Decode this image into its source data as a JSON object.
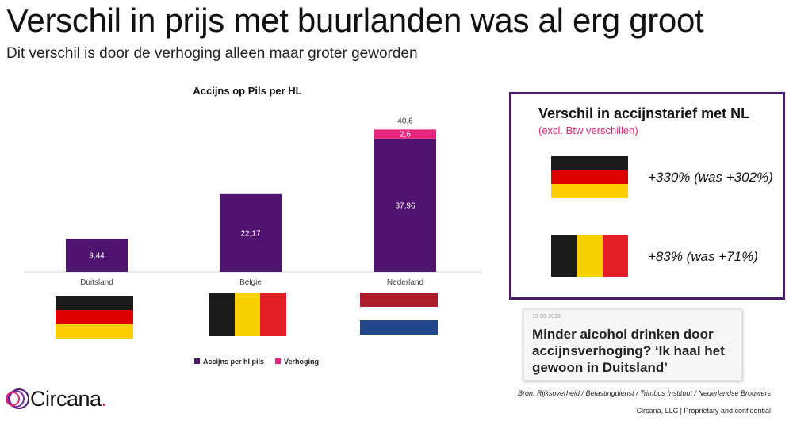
{
  "title": "Verschil in prijs met buurlanden was al erg groot",
  "subtitle": "Dit verschil is door de verhoging alleen maar groter geworden",
  "chart_data": {
    "type": "bar",
    "stacked": true,
    "title": "Accijns op Pils per HL",
    "categories": [
      "Duitsland",
      "Belgie",
      "Nederland"
    ],
    "series": [
      {
        "name": "Accijns per hl pils",
        "color": "#4f1370",
        "values": [
          9.44,
          22.17,
          37.96
        ],
        "labels": [
          "9,44",
          "22,17",
          "37,96"
        ]
      },
      {
        "name": "Verhoging",
        "color": "#e5287d",
        "values": [
          0,
          0,
          2.6
        ],
        "labels": [
          "",
          "",
          "2,6"
        ]
      }
    ],
    "totals": [
      "",
      "",
      "40,6"
    ],
    "ylim": [
      0,
      42
    ],
    "grid": false,
    "legend": "bottom"
  },
  "flags": {
    "germany": [
      "#1a1a1a",
      "#dd0000",
      "#ffce00"
    ],
    "belgium": [
      "#1a1a1a",
      "#f6d200",
      "#e01e24"
    ],
    "netherlands": [
      "#ad1d2c",
      "#ffffff",
      "#21468b"
    ]
  },
  "panel": {
    "title": "Verschil in accijnstarief met NL",
    "subtitle": "(excl. Btw verschillen)",
    "rows": [
      {
        "country": "germany",
        "text": "+330% (was +302%)"
      },
      {
        "country": "belgium",
        "text": "+83% (was +71%)"
      }
    ]
  },
  "news": {
    "date": "19-09-2023",
    "headline": "Minder alcohol drinken door accijnsverhoging? ‘Ik haal het gewoon in Duitsland’"
  },
  "source": "Bron: Rijksoverheid / Belastingdienst / Trimbos Instituut / Nederlandse Brouwers",
  "footer": "Circana, LLC  |  Proprietary and confidential",
  "brand": {
    "name": "Circana",
    "dot": ".",
    "accent": "#e0267a"
  }
}
